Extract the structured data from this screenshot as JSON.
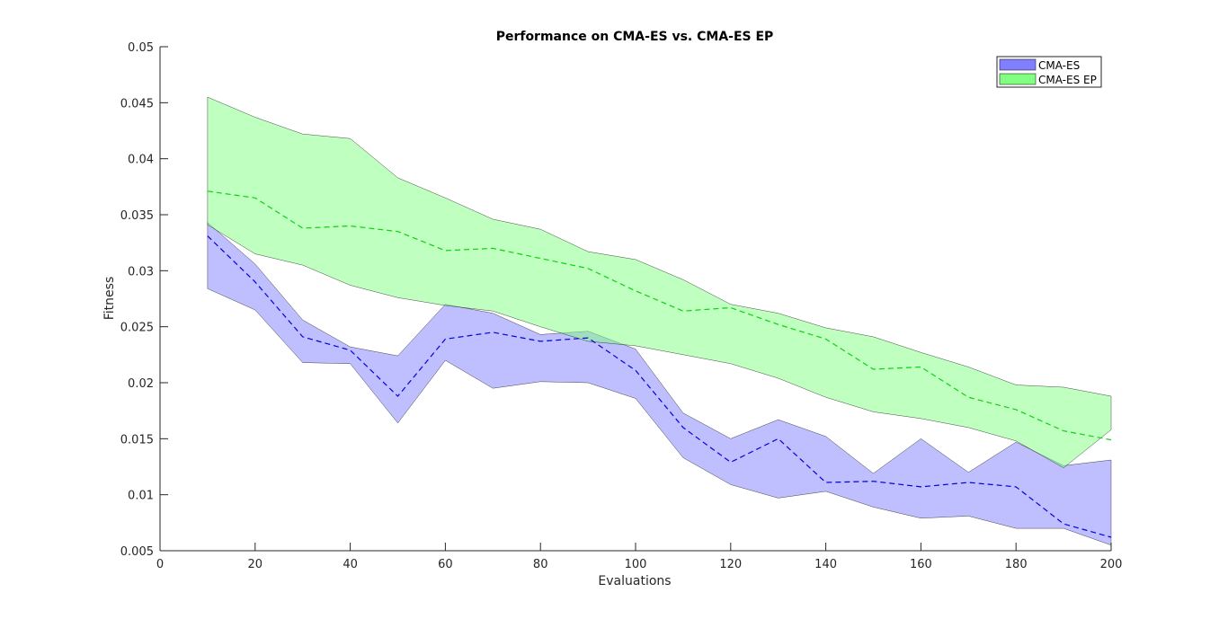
{
  "chart_data": {
    "type": "area",
    "title": "Performance on CMA-ES vs. CMA-ES EP",
    "xlabel": "Evaluations",
    "ylabel": "Fitness",
    "xlim": [
      0,
      200
    ],
    "ylim": [
      0.005,
      0.05
    ],
    "xticks": [
      "0",
      "20",
      "40",
      "60",
      "80",
      "100",
      "120",
      "140",
      "160",
      "180",
      "200"
    ],
    "yticks": [
      "0.005",
      "0.01",
      "0.015",
      "0.02",
      "0.025",
      "0.03",
      "0.035",
      "0.04",
      "0.045",
      "0.05"
    ],
    "x": [
      10,
      20,
      30,
      40,
      50,
      60,
      70,
      80,
      90,
      100,
      110,
      120,
      130,
      140,
      150,
      160,
      170,
      180,
      190,
      200
    ],
    "grid": false,
    "legend_position": "top-right",
    "series": [
      {
        "name": "CMA-ES",
        "fill_color": "#8080ff",
        "line_color": "#0000e0",
        "mean": [
          0.0331,
          0.029,
          0.0241,
          0.0229,
          0.0188,
          0.0239,
          0.0245,
          0.0237,
          0.024,
          0.0211,
          0.016,
          0.0129,
          0.015,
          0.0111,
          0.0112,
          0.0107,
          0.0111,
          0.0107,
          0.0074,
          0.0062
        ],
        "upper": [
          0.0343,
          0.0306,
          0.0256,
          0.0232,
          0.0224,
          0.027,
          0.0262,
          0.0243,
          0.0246,
          0.023,
          0.0173,
          0.015,
          0.0167,
          0.0152,
          0.0119,
          0.015,
          0.012,
          0.0147,
          0.0126,
          0.0131
        ],
        "lower": [
          0.0284,
          0.0265,
          0.0218,
          0.0217,
          0.0164,
          0.022,
          0.0195,
          0.0201,
          0.02,
          0.0186,
          0.0133,
          0.0109,
          0.0097,
          0.0103,
          0.0089,
          0.0079,
          0.0081,
          0.007,
          0.007,
          0.0055
        ]
      },
      {
        "name": "CMA-ES EP",
        "fill_color": "#80ff80",
        "line_color": "#10d010",
        "mean": [
          0.0371,
          0.0365,
          0.0338,
          0.034,
          0.0335,
          0.0318,
          0.032,
          0.0311,
          0.0302,
          0.0282,
          0.0264,
          0.0267,
          0.0252,
          0.0239,
          0.0212,
          0.0214,
          0.0187,
          0.0176,
          0.0157,
          0.0149
        ],
        "upper": [
          0.0455,
          0.0437,
          0.0422,
          0.0418,
          0.0383,
          0.0365,
          0.0346,
          0.0337,
          0.0317,
          0.031,
          0.0292,
          0.027,
          0.0262,
          0.0249,
          0.0241,
          0.0227,
          0.0214,
          0.0198,
          0.0196,
          0.0188
        ],
        "lower": [
          0.0341,
          0.0315,
          0.0305,
          0.0287,
          0.0276,
          0.0269,
          0.0264,
          0.025,
          0.0237,
          0.0233,
          0.0225,
          0.0217,
          0.0204,
          0.0187,
          0.0174,
          0.0168,
          0.016,
          0.0148,
          0.0124,
          0.0158
        ]
      }
    ]
  }
}
